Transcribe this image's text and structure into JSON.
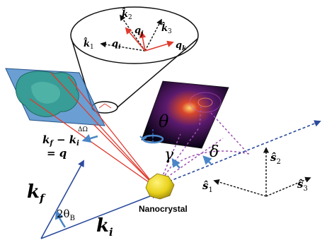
{
  "labels": {
    "k2": "k̂",
    "k2_sub": "2",
    "k3": "k̂",
    "k3_sub": "3",
    "k1": "k̂",
    "k1_sub": "1",
    "qj": "q",
    "qj_sub": "j",
    "qi": "q",
    "qi_sub": "i",
    "qk": "q",
    "qk_sub": "k",
    "theta": "θ",
    "gamma": "γ",
    "delta": "δ",
    "delta_omega": "ΔΩ",
    "kf_minus": "k",
    "kf_minus_sub": "f",
    "minus": " − ",
    "ki_sub_a": "i",
    "ki_a": "k",
    "equals_q": "= q",
    "kf": "k",
    "kf_sub": "f",
    "ki": "k",
    "ki_sub": "i",
    "two_theta": "2θ",
    "two_theta_sub": "B",
    "nanocrystal": "Nanocrystal",
    "s1": "ŝ",
    "s1_sub": "1",
    "s2": "ŝ",
    "s2_sub": "2",
    "s3": "ŝ",
    "s3_sub": "3"
  },
  "colors": {
    "blue_axis": "#2a4a9c",
    "red_beam": "#e03a2e",
    "purple_dash": "#9b4fb0",
    "arc_blue": "#4a86c8",
    "crystal": "#e8d21a",
    "plane": "#3a7fc4",
    "blob": "#2f9b8c"
  }
}
